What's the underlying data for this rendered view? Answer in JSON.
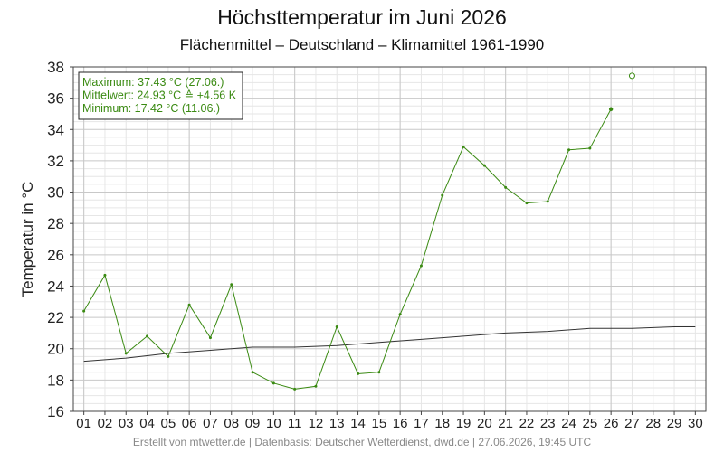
{
  "header": {
    "title": "Höchsttemperatur im Juni 2026",
    "subtitle": "Flächenmittel – Deutschland – Klimamittel 1961-1990"
  },
  "footer": {
    "text": "Erstellt von mtwetter.de | Datenbasis: Deutscher Wetterdienst, dwd.de | 27.06.2026, 19:45 UTC"
  },
  "stats": {
    "max_line": "Maximum: 37.43 °C (27.06.)",
    "mean_line": "Mittelwert: 24.93 °C ≙ +4.56 K",
    "min_line": "Minimum: 17.42 °C (11.06.)"
  },
  "colors": {
    "series": "#3a8a12",
    "climate": "#333333",
    "grid_major": "#c8c8c8",
    "grid_minor": "#e6e6e6"
  },
  "chart_data": {
    "type": "line",
    "title": "Höchsttemperatur im Juni 2026",
    "subtitle": "Flächenmittel – Deutschland – Klimamittel 1961-1990",
    "xlabel": "",
    "ylabel": "Temperatur in °C",
    "ylim": [
      16,
      38
    ],
    "yticks": [
      16,
      18,
      20,
      22,
      24,
      26,
      28,
      30,
      32,
      34,
      36,
      38
    ],
    "xticks": [
      "01",
      "02",
      "03",
      "04",
      "05",
      "06",
      "07",
      "08",
      "09",
      "10",
      "11",
      "12",
      "13",
      "14",
      "15",
      "16",
      "17",
      "18",
      "19",
      "20",
      "21",
      "22",
      "23",
      "24",
      "25",
      "26",
      "27",
      "28",
      "29",
      "30"
    ],
    "grid": true,
    "series": [
      {
        "role": "daily",
        "days": [
          1,
          2,
          3,
          4,
          5,
          6,
          7,
          8,
          9,
          10,
          11,
          12,
          13,
          14,
          15,
          16,
          17,
          18,
          19,
          20,
          21,
          22,
          23,
          24,
          25,
          26
        ],
        "values": [
          22.4,
          24.7,
          19.7,
          20.8,
          19.5,
          22.8,
          20.7,
          24.1,
          18.5,
          17.8,
          17.42,
          17.6,
          21.4,
          18.4,
          18.5,
          22.2,
          25.3,
          29.8,
          32.9,
          31.7,
          30.3,
          29.3,
          29.4,
          32.7,
          32.8,
          35.3
        ]
      },
      {
        "role": "forecast",
        "days": [
          27
        ],
        "values": [
          37.43
        ]
      },
      {
        "role": "climate",
        "days": [
          1,
          3,
          5,
          7,
          9,
          11,
          13,
          15,
          17,
          19,
          21,
          23,
          25,
          27,
          29,
          30
        ],
        "values": [
          19.2,
          19.4,
          19.7,
          19.9,
          20.1,
          20.1,
          20.2,
          20.4,
          20.6,
          20.8,
          21.0,
          21.1,
          21.3,
          21.3,
          21.4,
          21.4
        ]
      }
    ]
  }
}
